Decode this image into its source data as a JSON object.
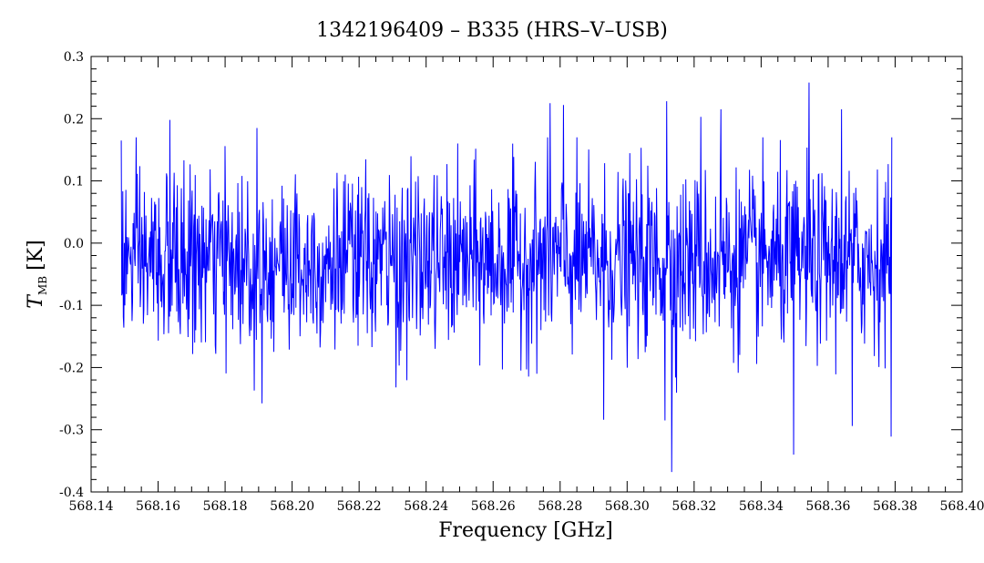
{
  "chart_data": {
    "type": "line",
    "title": "1342196409 – B335 (HRS–V–USB)",
    "xlabel": "Frequency [GHz]",
    "ylabel": {
      "main": "T",
      "subscript": "MB",
      "unit": "[K]"
    },
    "xlim": [
      568.14,
      568.4
    ],
    "ylim": [
      -0.4,
      0.3
    ],
    "x_ticks": [
      "568.14",
      "568.16",
      "568.18",
      "568.20",
      "568.22",
      "568.24",
      "568.26",
      "568.28",
      "568.30",
      "568.32",
      "568.34",
      "568.36",
      "568.38",
      "568.40"
    ],
    "y_ticks": [
      "0.3",
      "0.2",
      "0.1",
      "0.0",
      "-0.1",
      "-0.2",
      "-0.3",
      "-0.4"
    ],
    "y_tick_values": [
      0.3,
      0.2,
      0.1,
      0.0,
      -0.1,
      -0.2,
      -0.3,
      -0.4
    ],
    "grid": false,
    "series": [
      {
        "color": "#0000ff",
        "x_range": [
          568.149,
          568.379
        ],
        "baseline": -0.03,
        "noise_rms": 0.07,
        "notable_points": [
          {
            "x": 568.149,
            "y": 0.165
          },
          {
            "x": 568.1635,
            "y": 0.198
          },
          {
            "x": 568.1887,
            "y": -0.237
          },
          {
            "x": 568.1895,
            "y": 0.185
          },
          {
            "x": 568.231,
            "y": -0.232
          },
          {
            "x": 568.277,
            "y": 0.225
          },
          {
            "x": 568.281,
            "y": 0.222
          },
          {
            "x": 568.293,
            "y": -0.284
          },
          {
            "x": 568.3113,
            "y": -0.285
          },
          {
            "x": 568.3118,
            "y": 0.228
          },
          {
            "x": 568.3133,
            "y": -0.368
          },
          {
            "x": 568.322,
            "y": 0.203
          },
          {
            "x": 568.328,
            "y": 0.215
          },
          {
            "x": 568.3497,
            "y": -0.34
          },
          {
            "x": 568.3543,
            "y": 0.258
          },
          {
            "x": 568.364,
            "y": 0.215
          },
          {
            "x": 568.3672,
            "y": -0.294
          },
          {
            "x": 568.3788,
            "y": -0.311
          },
          {
            "x": 568.379,
            "y": 0.17
          }
        ]
      }
    ]
  }
}
